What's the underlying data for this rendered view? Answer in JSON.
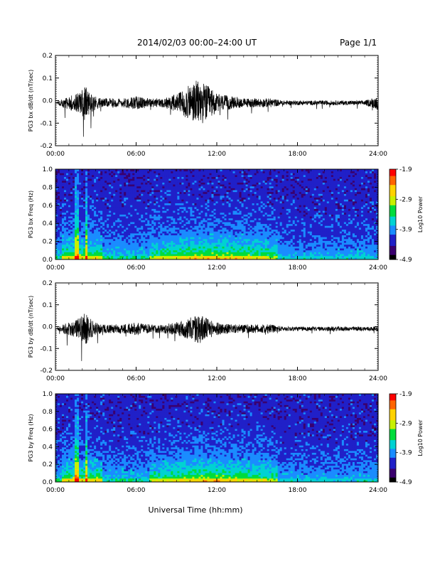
{
  "header": {
    "title": "2014/02/03  00:00–24:00 UT",
    "page": "Page 1/1"
  },
  "chart_data": [
    {
      "type": "line",
      "id": "bx_dbdt",
      "ylabel": "PG3 bx dB/dt (nT/sec)",
      "xlabel": "",
      "xlim": [
        0,
        24
      ],
      "ylim": [
        -0.2,
        0.2
      ],
      "x_ticks": [
        "00:00",
        "06:00",
        "12:00",
        "18:00",
        "24:00"
      ],
      "y_ticks": [
        "0.2",
        "0.1",
        "0.0",
        "-0.1",
        "-0.2"
      ],
      "series": [
        {
          "x": [
            0,
            0.5,
            1,
            1.5,
            2,
            2.2,
            2.5,
            3,
            3.5,
            4,
            5,
            6,
            7,
            8,
            9,
            10,
            10.5,
            11,
            11.5,
            12,
            13,
            14,
            15,
            16,
            17,
            18,
            19,
            20,
            21,
            22,
            23,
            24
          ],
          "values": [
            0.0,
            0.02,
            0.03,
            0.04,
            0.06,
            0.08,
            0.05,
            0.03,
            0.02,
            0.02,
            0.02,
            0.03,
            0.02,
            0.02,
            0.04,
            0.08,
            0.1,
            0.09,
            0.07,
            0.04,
            0.03,
            0.02,
            0.02,
            0.02,
            0.01,
            0.01,
            0.01,
            0.01,
            0.01,
            0.01,
            0.01,
            0.03
          ]
        }
      ],
      "grid": false
    },
    {
      "type": "heatmap",
      "id": "bx_spec",
      "ylabel": "PG3 bx Freq (Hz)",
      "xlim": [
        0,
        24
      ],
      "ylim": [
        0.0,
        1.0
      ],
      "x_ticks": [
        "00:00",
        "06:00",
        "12:00",
        "18:00",
        "24:00"
      ],
      "y_ticks": [
        "1.0",
        "0.8",
        "0.6",
        "0.4",
        "0.2",
        "0.0"
      ],
      "colorbar": {
        "label": "Log10 Power",
        "ticks": [
          "-1.9",
          "-2.9",
          "-3.9",
          "-4.9"
        ],
        "range": [
          -4.9,
          -1.9
        ]
      }
    },
    {
      "type": "line",
      "id": "by_dbdt",
      "ylabel": "PG3 by dB/dt (nT/sec)",
      "xlabel": "",
      "xlim": [
        0,
        24
      ],
      "ylim": [
        -0.2,
        0.2
      ],
      "x_ticks": [
        "00:00",
        "06:00",
        "12:00",
        "18:00",
        "24:00"
      ],
      "y_ticks": [
        "0.2",
        "0.1",
        "0.0",
        "-0.1",
        "-0.2"
      ],
      "series": [
        {
          "x": [
            0,
            0.5,
            1,
            1.5,
            2,
            2.2,
            2.5,
            3,
            3.5,
            4,
            5,
            6,
            7,
            8,
            9,
            10,
            10.5,
            11,
            11.5,
            12,
            13,
            14,
            15,
            16,
            17,
            18,
            19,
            20,
            21,
            22,
            23,
            24
          ],
          "values": [
            0.0,
            0.02,
            0.03,
            0.04,
            0.06,
            0.08,
            0.05,
            0.03,
            0.02,
            0.02,
            0.02,
            0.03,
            0.02,
            0.02,
            0.03,
            0.05,
            0.07,
            0.06,
            0.04,
            0.03,
            0.02,
            0.02,
            0.02,
            0.02,
            0.01,
            0.01,
            0.01,
            0.01,
            0.01,
            0.01,
            0.01,
            0.01
          ]
        }
      ],
      "grid": false
    },
    {
      "type": "heatmap",
      "id": "by_spec",
      "ylabel": "PG3 by Freq (Hz)",
      "xlabel": "Universal Time (hh:mm)",
      "xlim": [
        0,
        24
      ],
      "ylim": [
        0.0,
        1.0
      ],
      "x_ticks": [
        "00:00",
        "06:00",
        "12:00",
        "18:00",
        "24:00"
      ],
      "y_ticks": [
        "1.0",
        "0.8",
        "0.6",
        "0.4",
        "0.2",
        "0.0"
      ],
      "colorbar": {
        "label": "Log10 Power",
        "ticks": [
          "-1.9",
          "-2.9",
          "-3.9",
          "-4.9"
        ],
        "range": [
          -4.9,
          -1.9
        ]
      }
    }
  ],
  "colors": {
    "trace": "#000000",
    "colormap": [
      "#000000",
      "#3a006e",
      "#2020c8",
      "#1a8cff",
      "#00d2d2",
      "#00dc3c",
      "#c8f000",
      "#ffd200",
      "#ff6400",
      "#ff0000"
    ]
  }
}
